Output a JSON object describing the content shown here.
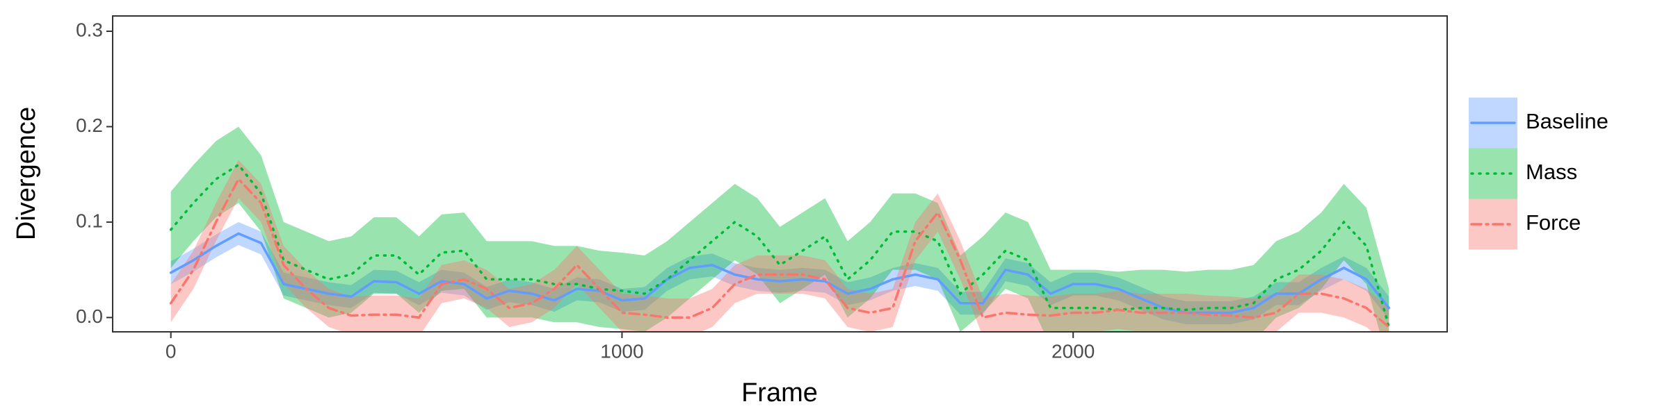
{
  "chart_data": {
    "type": "line",
    "x_label": "Frame",
    "y_label": "Divergence",
    "xlim": [
      -129,
      2829
    ],
    "ylim": [
      -0.015,
      0.316
    ],
    "xticks": [
      0,
      1000,
      2000
    ],
    "yticks": [
      {
        "value": 0,
        "label": "0.0"
      },
      0.1,
      0.2,
      0.3
    ],
    "grid": false,
    "legend": "right",
    "x": [
      0,
      50,
      100,
      150,
      200,
      250,
      300,
      350,
      400,
      450,
      500,
      550,
      600,
      650,
      700,
      750,
      800,
      850,
      900,
      950,
      1000,
      1050,
      1100,
      1150,
      1200,
      1250,
      1300,
      1350,
      1400,
      1450,
      1500,
      1550,
      1600,
      1650,
      1700,
      1750,
      1800,
      1850,
      1900,
      1950,
      2000,
      2050,
      2100,
      2150,
      2200,
      2250,
      2300,
      2350,
      2400,
      2450,
      2500,
      2550,
      2600,
      2650,
      2700
    ],
    "series": [
      {
        "name": "Baseline",
        "color": "#619CFF",
        "linestyle": "solid",
        "values": [
          0.047,
          0.06,
          0.075,
          0.088,
          0.078,
          0.035,
          0.03,
          0.025,
          0.022,
          0.038,
          0.037,
          0.025,
          0.038,
          0.035,
          0.02,
          0.028,
          0.025,
          0.018,
          0.03,
          0.028,
          0.018,
          0.02,
          0.04,
          0.052,
          0.055,
          0.045,
          0.04,
          0.038,
          0.04,
          0.038,
          0.025,
          0.03,
          0.04,
          0.045,
          0.04,
          0.015,
          0.015,
          0.05,
          0.045,
          0.025,
          0.035,
          0.035,
          0.03,
          0.02,
          0.01,
          0.005,
          0.005,
          0.005,
          0.01,
          0.025,
          0.025,
          0.04,
          0.052,
          0.04,
          0.01
        ],
        "lower": [
          0.035,
          0.048,
          0.063,
          0.076,
          0.066,
          0.023,
          0.018,
          0.013,
          0.01,
          0.026,
          0.025,
          0.013,
          0.026,
          0.023,
          0.008,
          0.016,
          0.013,
          0.006,
          0.018,
          0.016,
          0.006,
          0.008,
          0.028,
          0.04,
          0.043,
          0.033,
          0.028,
          0.026,
          0.028,
          0.026,
          0.013,
          0.018,
          0.028,
          0.033,
          0.028,
          0.003,
          0.003,
          0.038,
          0.033,
          0.013,
          0.023,
          0.023,
          0.018,
          0.008,
          -0.002,
          -0.007,
          -0.007,
          -0.007,
          -0.002,
          0.013,
          0.013,
          0.028,
          0.04,
          0.028,
          -0.002
        ],
        "upper": [
          0.059,
          0.072,
          0.087,
          0.1,
          0.09,
          0.047,
          0.042,
          0.037,
          0.034,
          0.05,
          0.049,
          0.037,
          0.05,
          0.047,
          0.032,
          0.04,
          0.037,
          0.03,
          0.042,
          0.04,
          0.03,
          0.032,
          0.052,
          0.064,
          0.067,
          0.057,
          0.052,
          0.05,
          0.052,
          0.05,
          0.037,
          0.042,
          0.052,
          0.057,
          0.052,
          0.027,
          0.027,
          0.062,
          0.057,
          0.037,
          0.047,
          0.047,
          0.042,
          0.032,
          0.022,
          0.017,
          0.017,
          0.017,
          0.022,
          0.037,
          0.037,
          0.052,
          0.064,
          0.052,
          0.022
        ]
      },
      {
        "name": "Mass",
        "color": "#00BA38",
        "linestyle": "dotted",
        "values": [
          0.092,
          0.12,
          0.145,
          0.16,
          0.13,
          0.06,
          0.05,
          0.04,
          0.045,
          0.065,
          0.065,
          0.045,
          0.068,
          0.07,
          0.04,
          0.04,
          0.04,
          0.035,
          0.035,
          0.03,
          0.028,
          0.025,
          0.04,
          0.06,
          0.08,
          0.1,
          0.085,
          0.055,
          0.07,
          0.085,
          0.04,
          0.06,
          0.09,
          0.09,
          0.08,
          0.025,
          0.045,
          0.07,
          0.06,
          0.01,
          0.01,
          0.01,
          0.008,
          0.01,
          0.01,
          0.008,
          0.01,
          0.01,
          0.015,
          0.04,
          0.05,
          0.07,
          0.1,
          0.075,
          -0.01
        ],
        "lower": [
          0.052,
          0.08,
          0.105,
          0.12,
          0.09,
          0.02,
          0.01,
          0,
          0.005,
          0.025,
          0.025,
          0.005,
          0.028,
          0.03,
          0,
          0,
          0,
          -0.005,
          -0.005,
          -0.01,
          -0.012,
          -0.015,
          0,
          0.02,
          0.04,
          0.06,
          0.045,
          0.015,
          0.03,
          0.045,
          0,
          0.02,
          0.05,
          0.05,
          0.04,
          -0.015,
          0.005,
          0.03,
          0.02,
          -0.03,
          -0.03,
          -0.03,
          -0.032,
          -0.03,
          -0.03,
          -0.032,
          -0.03,
          -0.03,
          -0.025,
          0,
          0.01,
          0.03,
          0.06,
          0.035,
          -0.05
        ],
        "upper": [
          0.132,
          0.16,
          0.185,
          0.2,
          0.17,
          0.1,
          0.09,
          0.08,
          0.085,
          0.105,
          0.105,
          0.085,
          0.108,
          0.11,
          0.08,
          0.08,
          0.08,
          0.075,
          0.075,
          0.07,
          0.068,
          0.065,
          0.08,
          0.1,
          0.12,
          0.14,
          0.125,
          0.095,
          0.11,
          0.125,
          0.08,
          0.1,
          0.13,
          0.13,
          0.12,
          0.065,
          0.085,
          0.11,
          0.1,
          0.05,
          0.05,
          0.05,
          0.048,
          0.05,
          0.05,
          0.048,
          0.05,
          0.05,
          0.055,
          0.08,
          0.09,
          0.11,
          0.14,
          0.115,
          0.03
        ]
      },
      {
        "name": "Force",
        "color": "#F8766D",
        "linestyle": "dashdot",
        "values": [
          0.015,
          0.05,
          0.1,
          0.145,
          0.12,
          0.055,
          0.03,
          0.01,
          0.002,
          0.003,
          0.003,
          0,
          0.035,
          0.04,
          0.03,
          0.01,
          0.015,
          0.03,
          0.055,
          0.03,
          0.005,
          0.003,
          0,
          0,
          0.01,
          0.035,
          0.045,
          0.045,
          0.045,
          0.04,
          0.01,
          0.005,
          0.01,
          0.08,
          0.11,
          0.06,
          0,
          0.005,
          0.003,
          0.002,
          0.005,
          0.005,
          0.008,
          0.005,
          0.005,
          0.005,
          0.003,
          0.002,
          0,
          0.005,
          0.025,
          0.025,
          0.02,
          0.01,
          -0.01
        ],
        "lower": [
          -0.005,
          0.03,
          0.08,
          0.125,
          0.1,
          0.035,
          0.01,
          -0.01,
          -0.018,
          -0.017,
          -0.017,
          -0.02,
          0.015,
          0.02,
          0.01,
          -0.01,
          -0.005,
          0.01,
          0.035,
          0.01,
          -0.015,
          -0.017,
          -0.02,
          -0.02,
          -0.01,
          0.015,
          0.025,
          0.025,
          0.025,
          0.02,
          -0.01,
          -0.015,
          -0.01,
          0.06,
          0.09,
          0.04,
          -0.02,
          -0.015,
          -0.017,
          -0.018,
          -0.015,
          -0.015,
          -0.012,
          -0.015,
          -0.015,
          -0.015,
          -0.017,
          -0.018,
          -0.02,
          -0.015,
          0.005,
          0.005,
          0,
          -0.01,
          -0.03
        ],
        "upper": [
          0.035,
          0.07,
          0.12,
          0.165,
          0.14,
          0.075,
          0.05,
          0.03,
          0.022,
          0.023,
          0.023,
          0.02,
          0.055,
          0.06,
          0.05,
          0.03,
          0.035,
          0.05,
          0.075,
          0.05,
          0.025,
          0.023,
          0.02,
          0.02,
          0.03,
          0.055,
          0.065,
          0.065,
          0.065,
          0.06,
          0.03,
          0.025,
          0.03,
          0.1,
          0.13,
          0.08,
          0.02,
          0.025,
          0.023,
          0.022,
          0.025,
          0.025,
          0.028,
          0.025,
          0.025,
          0.025,
          0.023,
          0.022,
          0.02,
          0.025,
          0.045,
          0.045,
          0.04,
          0.03,
          0.01
        ]
      }
    ]
  }
}
